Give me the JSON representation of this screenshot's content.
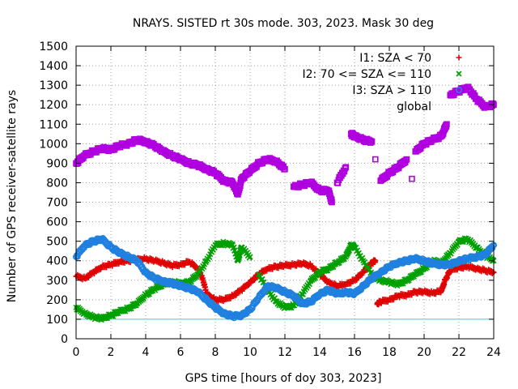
{
  "chart_data": {
    "type": "scatter",
    "title": "NRAYS. SISTED rt 30s mode. 303, 2023. Mask 30 deg",
    "xlabel": "GPS time [hours of doy 303, 2023]",
    "ylabel": "Number of GPS receiver-satellite rays",
    "xlim": [
      0,
      24
    ],
    "ylim": [
      0,
      1500
    ],
    "x_ticks": [
      "0",
      "2",
      "4",
      "6",
      "8",
      "10",
      "12",
      "14",
      "16",
      "18",
      "20",
      "22",
      "24"
    ],
    "y_ticks": [
      "0",
      "100",
      "200",
      "300",
      "400",
      "500",
      "600",
      "700",
      "800",
      "900",
      "1000",
      "1100",
      "1200",
      "1300",
      "1400",
      "1500"
    ],
    "grid": true,
    "legend_position": "top-right",
    "series": [
      {
        "name": "I1: SZA < 70",
        "marker": "plus",
        "color": "#e00000",
        "points": [
          [
            0,
            320
          ],
          [
            0.5,
            310
          ],
          [
            1,
            340
          ],
          [
            1.5,
            370
          ],
          [
            2,
            380
          ],
          [
            2.5,
            395
          ],
          [
            3,
            400
          ],
          [
            3.5,
            405
          ],
          [
            4,
            410
          ],
          [
            4.5,
            400
          ],
          [
            5,
            390
          ],
          [
            5.5,
            375
          ],
          [
            6,
            380
          ],
          [
            6.5,
            395
          ],
          [
            7,
            360
          ],
          [
            7.3,
            300
          ],
          [
            7.5,
            230
          ],
          [
            8,
            200
          ],
          [
            8.5,
            200
          ],
          [
            9,
            220
          ],
          [
            9.5,
            250
          ],
          [
            10,
            290
          ],
          [
            10.5,
            330
          ],
          [
            11,
            360
          ],
          [
            11.5,
            370
          ],
          [
            12,
            375
          ],
          [
            12.5,
            380
          ],
          [
            13,
            385
          ],
          [
            13.5,
            375
          ],
          [
            14,
            330
          ],
          [
            14.5,
            290
          ],
          [
            15,
            270
          ],
          [
            15.5,
            280
          ],
          [
            16,
            300
          ],
          [
            16.5,
            340
          ],
          [
            17,
            390
          ],
          [
            17.2,
            400
          ],
          [
            17.3,
            180
          ],
          [
            17.5,
            190
          ],
          [
            18,
            200
          ],
          [
            18.5,
            220
          ],
          [
            19,
            225
          ],
          [
            19.5,
            240
          ],
          [
            20,
            240
          ],
          [
            20.5,
            235
          ],
          [
            21,
            245
          ],
          [
            21.2,
            300
          ],
          [
            21.5,
            350
          ],
          [
            22,
            365
          ],
          [
            22.5,
            370
          ],
          [
            23,
            360
          ],
          [
            23.5,
            350
          ],
          [
            24,
            340
          ]
        ]
      },
      {
        "name": "I2: 70 <= SZA <= 110",
        "marker": "cross",
        "color": "#00a000",
        "points": [
          [
            0,
            160
          ],
          [
            0.5,
            130
          ],
          [
            1,
            110
          ],
          [
            1.5,
            105
          ],
          [
            2,
            120
          ],
          [
            2.5,
            140
          ],
          [
            3,
            155
          ],
          [
            3.5,
            180
          ],
          [
            4,
            225
          ],
          [
            4.5,
            255
          ],
          [
            5,
            280
          ],
          [
            5.5,
            290
          ],
          [
            6,
            285
          ],
          [
            6.5,
            290
          ],
          [
            7,
            330
          ],
          [
            7.5,
            400
          ],
          [
            8,
            480
          ],
          [
            8.5,
            490
          ],
          [
            9,
            480
          ],
          [
            9.3,
            400
          ],
          [
            9.5,
            470
          ],
          [
            10,
            420
          ],
          [
            10.5,
            330
          ],
          [
            11,
            250
          ],
          [
            11.5,
            190
          ],
          [
            12,
            160
          ],
          [
            12.5,
            170
          ],
          [
            13,
            230
          ],
          [
            13.5,
            300
          ],
          [
            14,
            340
          ],
          [
            14.5,
            360
          ],
          [
            15,
            390
          ],
          [
            15.5,
            420
          ],
          [
            15.8,
            480
          ],
          [
            16,
            470
          ],
          [
            16.5,
            400
          ],
          [
            17,
            330
          ],
          [
            17.5,
            300
          ],
          [
            18,
            290
          ],
          [
            18.5,
            280
          ],
          [
            19,
            300
          ],
          [
            19.5,
            330
          ],
          [
            20,
            360
          ],
          [
            20.5,
            400
          ],
          [
            21,
            390
          ],
          [
            21.5,
            440
          ],
          [
            22,
            500
          ],
          [
            22.5,
            510
          ],
          [
            23,
            470
          ],
          [
            23.5,
            430
          ],
          [
            24,
            400
          ]
        ]
      },
      {
        "name": "I3: SZA > 110",
        "marker": "circle",
        "color": "#2080e0",
        "points": [
          [
            0,
            420
          ],
          [
            0.5,
            480
          ],
          [
            1,
            500
          ],
          [
            1.5,
            510
          ],
          [
            2,
            470
          ],
          [
            2.5,
            440
          ],
          [
            3,
            420
          ],
          [
            3.5,
            400
          ],
          [
            4,
            340
          ],
          [
            4.5,
            310
          ],
          [
            5,
            295
          ],
          [
            5.5,
            285
          ],
          [
            6,
            270
          ],
          [
            6.5,
            260
          ],
          [
            7,
            240
          ],
          [
            7.5,
            200
          ],
          [
            8,
            160
          ],
          [
            8.5,
            130
          ],
          [
            9,
            115
          ],
          [
            9.5,
            120
          ],
          [
            10,
            150
          ],
          [
            10.5,
            210
          ],
          [
            11,
            270
          ],
          [
            11.5,
            260
          ],
          [
            12,
            240
          ],
          [
            12.5,
            220
          ],
          [
            13,
            180
          ],
          [
            13.5,
            190
          ],
          [
            14,
            230
          ],
          [
            14.5,
            250
          ],
          [
            15,
            230
          ],
          [
            15.5,
            240
          ],
          [
            16,
            230
          ],
          [
            16.5,
            270
          ],
          [
            17,
            310
          ],
          [
            17.5,
            340
          ],
          [
            18,
            370
          ],
          [
            18.5,
            390
          ],
          [
            19,
            400
          ],
          [
            19.5,
            410
          ],
          [
            20,
            400
          ],
          [
            20.5,
            385
          ],
          [
            21,
            380
          ],
          [
            21.5,
            380
          ],
          [
            22,
            400
          ],
          [
            22.5,
            410
          ],
          [
            23,
            420
          ],
          [
            23.5,
            430
          ],
          [
            24,
            480
          ]
        ]
      },
      {
        "name": "global",
        "marker": "square",
        "color": "#b000e0",
        "points": [
          [
            0,
            900
          ],
          [
            0.5,
            940
          ],
          [
            1,
            960
          ],
          [
            1.5,
            975
          ],
          [
            2,
            970
          ],
          [
            2.5,
            990
          ],
          [
            3,
            1000
          ],
          [
            3.5,
            1020
          ],
          [
            4,
            1010
          ],
          [
            4.5,
            990
          ],
          [
            5,
            960
          ],
          [
            5.5,
            940
          ],
          [
            6,
            920
          ],
          [
            6.5,
            900
          ],
          [
            7,
            890
          ],
          [
            7.5,
            870
          ],
          [
            8,
            850
          ],
          [
            8.5,
            810
          ],
          [
            9,
            800
          ],
          [
            9.3,
            740
          ],
          [
            9.5,
            820
          ],
          [
            10,
            860
          ],
          [
            10.5,
            900
          ],
          [
            11,
            920
          ],
          [
            11.5,
            910
          ],
          [
            12,
            870
          ],
          [
            12.5,
            780
          ],
          [
            13,
            790
          ],
          [
            13.5,
            800
          ],
          [
            14,
            760
          ],
          [
            14.5,
            760
          ],
          [
            14.7,
            700
          ],
          [
            15,
            800
          ],
          [
            15.5,
            880
          ],
          [
            15.8,
            1050
          ],
          [
            16,
            1040
          ],
          [
            16.5,
            1020
          ],
          [
            17,
            1010
          ],
          [
            17.2,
            920
          ],
          [
            17.5,
            810
          ],
          [
            18,
            850
          ],
          [
            18.5,
            880
          ],
          [
            19,
            920
          ],
          [
            19.3,
            820
          ],
          [
            19.5,
            960
          ],
          [
            20,
            1000
          ],
          [
            20.5,
            1020
          ],
          [
            21,
            1040
          ],
          [
            21.3,
            1100
          ],
          [
            21.5,
            1250
          ],
          [
            22,
            1270
          ],
          [
            22.5,
            1290
          ],
          [
            23,
            1230
          ],
          [
            23.5,
            1190
          ],
          [
            24,
            1200
          ]
        ]
      }
    ],
    "reference_line": {
      "y": 100,
      "color": "#40d0d0"
    }
  }
}
